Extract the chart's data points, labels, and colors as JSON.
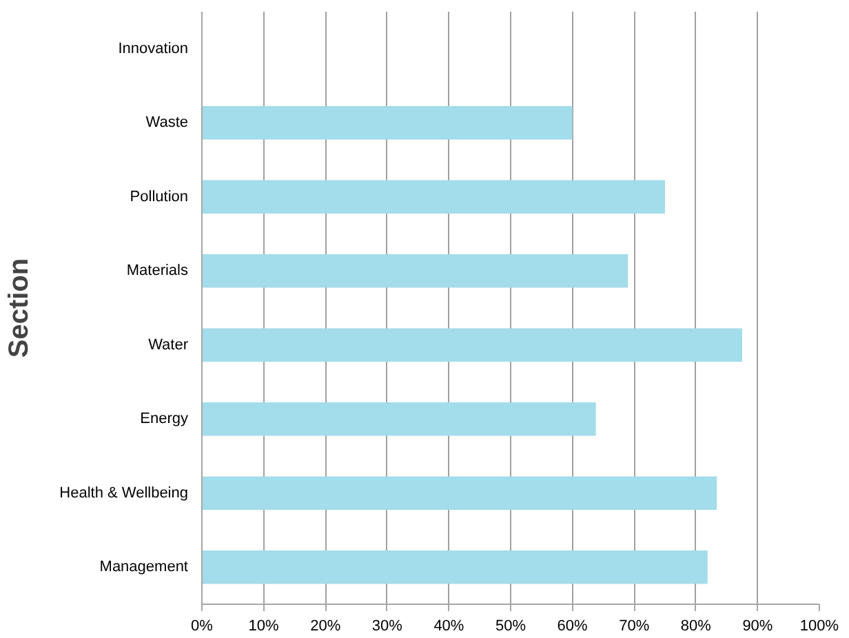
{
  "chart_data": {
    "type": "bar",
    "orientation": "horizontal",
    "ylabel": "Section",
    "categories": [
      "Innovation",
      "Waste",
      "Pollution",
      "Materials",
      "Water",
      "Energy",
      "Health & Wellbeing",
      "Management"
    ],
    "values": [
      0,
      60,
      75,
      69,
      87.5,
      63.8,
      83.4,
      81.9
    ],
    "color": "#a3dcea",
    "xlim": [
      0,
      100
    ],
    "xticks": [
      {
        "value": 0,
        "label": "0%"
      },
      {
        "value": 10,
        "label": "10%"
      },
      {
        "value": 20,
        "label": "20%"
      },
      {
        "value": 30,
        "label": "30%"
      },
      {
        "value": 40,
        "label": "40%"
      },
      {
        "value": 50,
        "label": "50%"
      },
      {
        "value": 60,
        "label": "60%"
      },
      {
        "value": 70,
        "label": "70%"
      },
      {
        "value": 80,
        "label": "80%"
      },
      {
        "value": 90,
        "label": "90%"
      },
      {
        "value": 100,
        "label": "100%"
      }
    ],
    "grid": "x"
  }
}
